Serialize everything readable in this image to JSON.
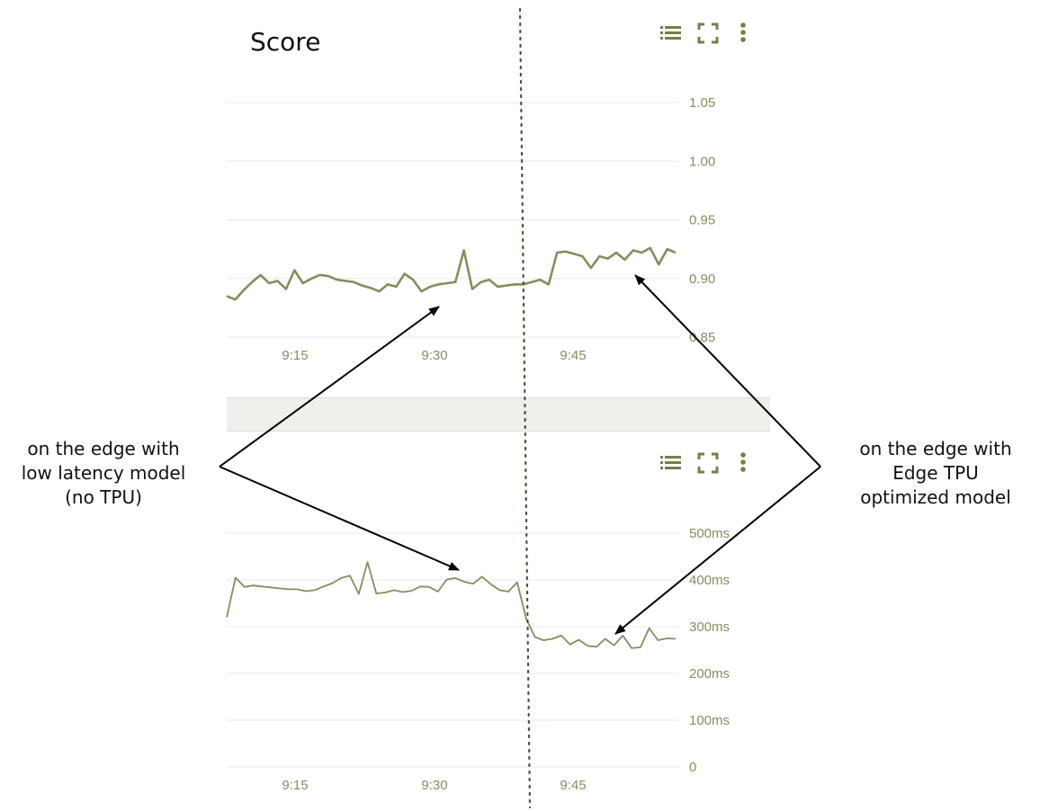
{
  "colors": {
    "series": "#8c8a5e",
    "grid": "#e8e8e8",
    "toolbar": "#7d7a4c",
    "arrow": "#000000",
    "divider": "#5a4a3a"
  },
  "icons": [
    "list-icon",
    "fullscreen-icon",
    "more-vert-icon"
  ],
  "charts": {
    "score": {
      "title": "Score"
    },
    "latency": {
      "title": ""
    }
  },
  "annotations": {
    "left": {
      "lines": [
        "on the edge with",
        "low latency model",
        "(no TPU)"
      ]
    },
    "right": {
      "lines": [
        "on the edge with",
        "Edge TPU",
        "optimized model"
      ]
    }
  },
  "chart_data": [
    {
      "type": "line",
      "title": "Score",
      "x_ticks": [
        "9:15",
        "9:30",
        "9:45"
      ],
      "y_ticks": [
        "0.85",
        "0.90",
        "0.95",
        "1.00",
        "1.05"
      ],
      "ylim": [
        0.85,
        1.05
      ],
      "grid": true,
      "series": [
        {
          "values": [
            0.885,
            0.882,
            0.89,
            0.897,
            0.903,
            0.896,
            0.898,
            0.891,
            0.907,
            0.896,
            0.9,
            0.903,
            0.902,
            0.899,
            0.898,
            0.897,
            0.894,
            0.892,
            0.889,
            0.895,
            0.893,
            0.904,
            0.899,
            0.889,
            0.893,
            0.895,
            0.896,
            0.897,
            0.924,
            0.891,
            0.897,
            0.899,
            0.893,
            0.894,
            0.895,
            0.895,
            0.897,
            0.899,
            0.895,
            0.922,
            0.923,
            0.921,
            0.919,
            0.909,
            0.919,
            0.917,
            0.922,
            0.916,
            0.924,
            0.922,
            0.926,
            0.912,
            0.925,
            0.922
          ]
        }
      ]
    },
    {
      "type": "line",
      "title": "",
      "x_ticks": [
        "9:15",
        "9:30",
        "9:45"
      ],
      "y_ticks": [
        "0",
        "100ms",
        "200ms",
        "300ms",
        "400ms",
        "500ms"
      ],
      "ylim": [
        0,
        500
      ],
      "grid": true,
      "series": [
        {
          "values": [
            320,
            405,
            385,
            388,
            386,
            384,
            382,
            380,
            380,
            376,
            378,
            386,
            393,
            404,
            409,
            370,
            438,
            371,
            373,
            378,
            374,
            377,
            386,
            385,
            375,
            401,
            404,
            396,
            392,
            407,
            391,
            378,
            375,
            395,
            318,
            278,
            271,
            274,
            281,
            262,
            272,
            259,
            257,
            274,
            260,
            281,
            254,
            256,
            297,
            271,
            275,
            274
          ]
        }
      ]
    }
  ]
}
